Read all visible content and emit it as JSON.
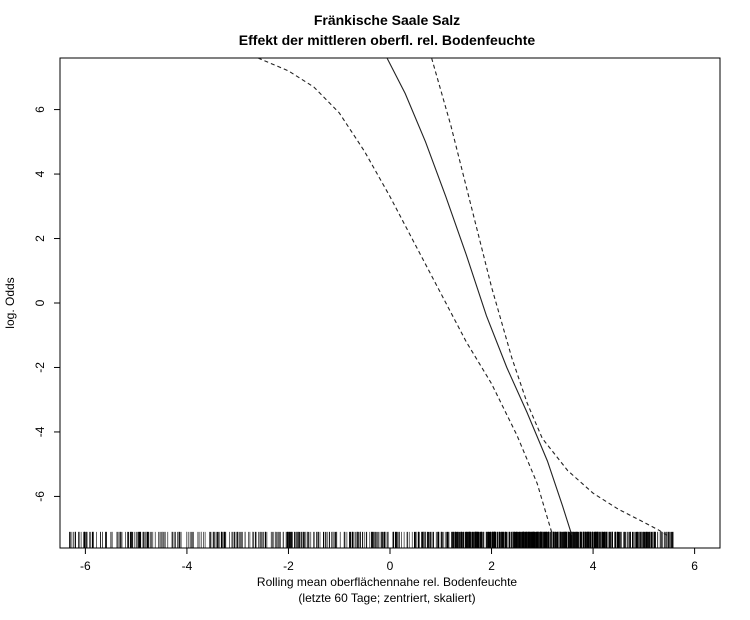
{
  "chart_data": {
    "type": "line",
    "title": "Fränkische Saale Salz",
    "subtitle": "Effekt der mittleren oberfl. rel. Bodenfeuchte",
    "xlabel": "Rolling mean oberflächennahe rel. Bodenfeuchte",
    "xlabel_line2": "(letzte 60 Tage; zentriert, skaliert)",
    "ylabel": "log. Odds",
    "xlim": [
      -6.5,
      6.5
    ],
    "ylim": [
      -7.6,
      7.6
    ],
    "x_ticks": [
      -6,
      -4,
      -2,
      0,
      2,
      4,
      6
    ],
    "x_tick_labels": [
      "-6",
      "-4",
      "-2",
      "0",
      "2",
      "4",
      "6"
    ],
    "y_ticks": [
      -6,
      -4,
      -2,
      0,
      2,
      4,
      6
    ],
    "y_tick_labels": [
      "-6",
      "-4",
      "-2",
      "0",
      "2",
      "4",
      "6"
    ],
    "grid": false,
    "series": [
      {
        "style": "solid",
        "x": [
          -0.06,
          0.3,
          0.7,
          1.1,
          1.5,
          1.9,
          2.3,
          2.7,
          3.1,
          3.4,
          3.58
        ],
        "y": [
          7.6,
          6.5,
          5.0,
          3.3,
          1.5,
          -0.4,
          -2.0,
          -3.4,
          -4.9,
          -6.3,
          -7.2
        ]
      },
      {
        "style": "dashed",
        "x": [
          -2.6,
          -2.0,
          -1.5,
          -1.0,
          -0.5,
          0.0,
          0.5,
          1.0,
          1.5,
          2.0,
          2.5,
          2.9,
          3.2
        ],
        "y": [
          7.6,
          7.2,
          6.7,
          5.9,
          4.7,
          3.3,
          1.8,
          0.3,
          -1.2,
          -2.5,
          -4.1,
          -5.6,
          -7.2
        ]
      },
      {
        "style": "dashed",
        "x": [
          0.82,
          1.2,
          1.6,
          2.0,
          2.4,
          2.7,
          3.0,
          3.5,
          4.0,
          4.5,
          5.0,
          5.3,
          5.45
        ],
        "y": [
          7.6,
          5.5,
          3.0,
          0.5,
          -1.7,
          -3.1,
          -4.2,
          -5.2,
          -5.9,
          -6.4,
          -6.8,
          -7.05,
          -7.2
        ]
      }
    ],
    "rug": {
      "x_min": -6.4,
      "x_max": 5.6,
      "count": 1100,
      "density_peak_x": 3.6
    }
  }
}
